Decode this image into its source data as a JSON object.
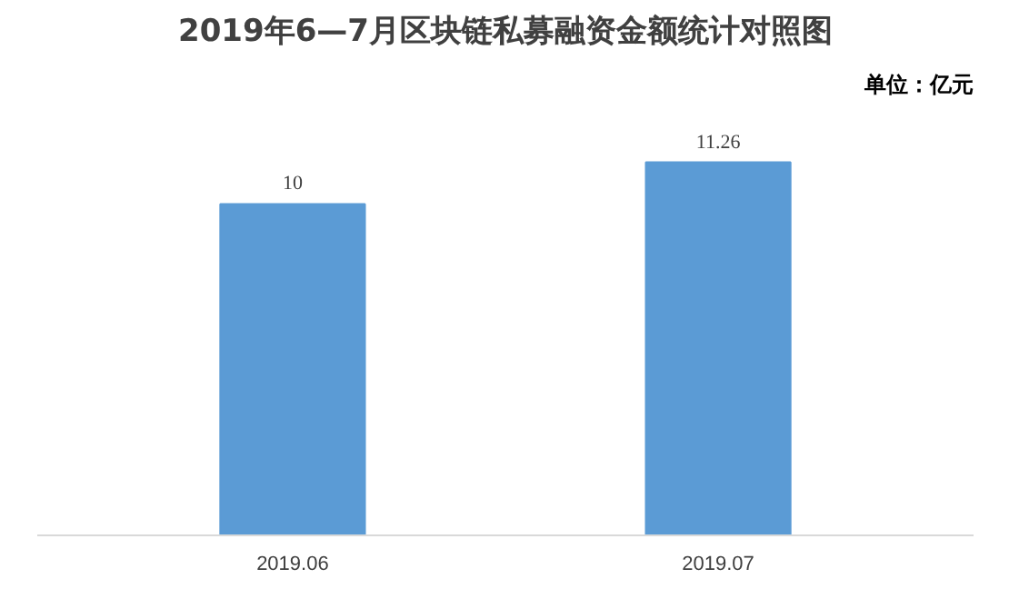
{
  "chart_data": {
    "type": "bar",
    "title": "2019年6—7月区块链私募融资金额统计对照图",
    "annotations": [
      "单位：亿元"
    ],
    "categories": [
      "2019.06",
      "2019.07"
    ],
    "values": [
      10,
      11.26
    ],
    "value_labels": [
      "10",
      "11.26"
    ],
    "color": "#5b9bd5",
    "tick_labels": "x",
    "grid": false
  }
}
